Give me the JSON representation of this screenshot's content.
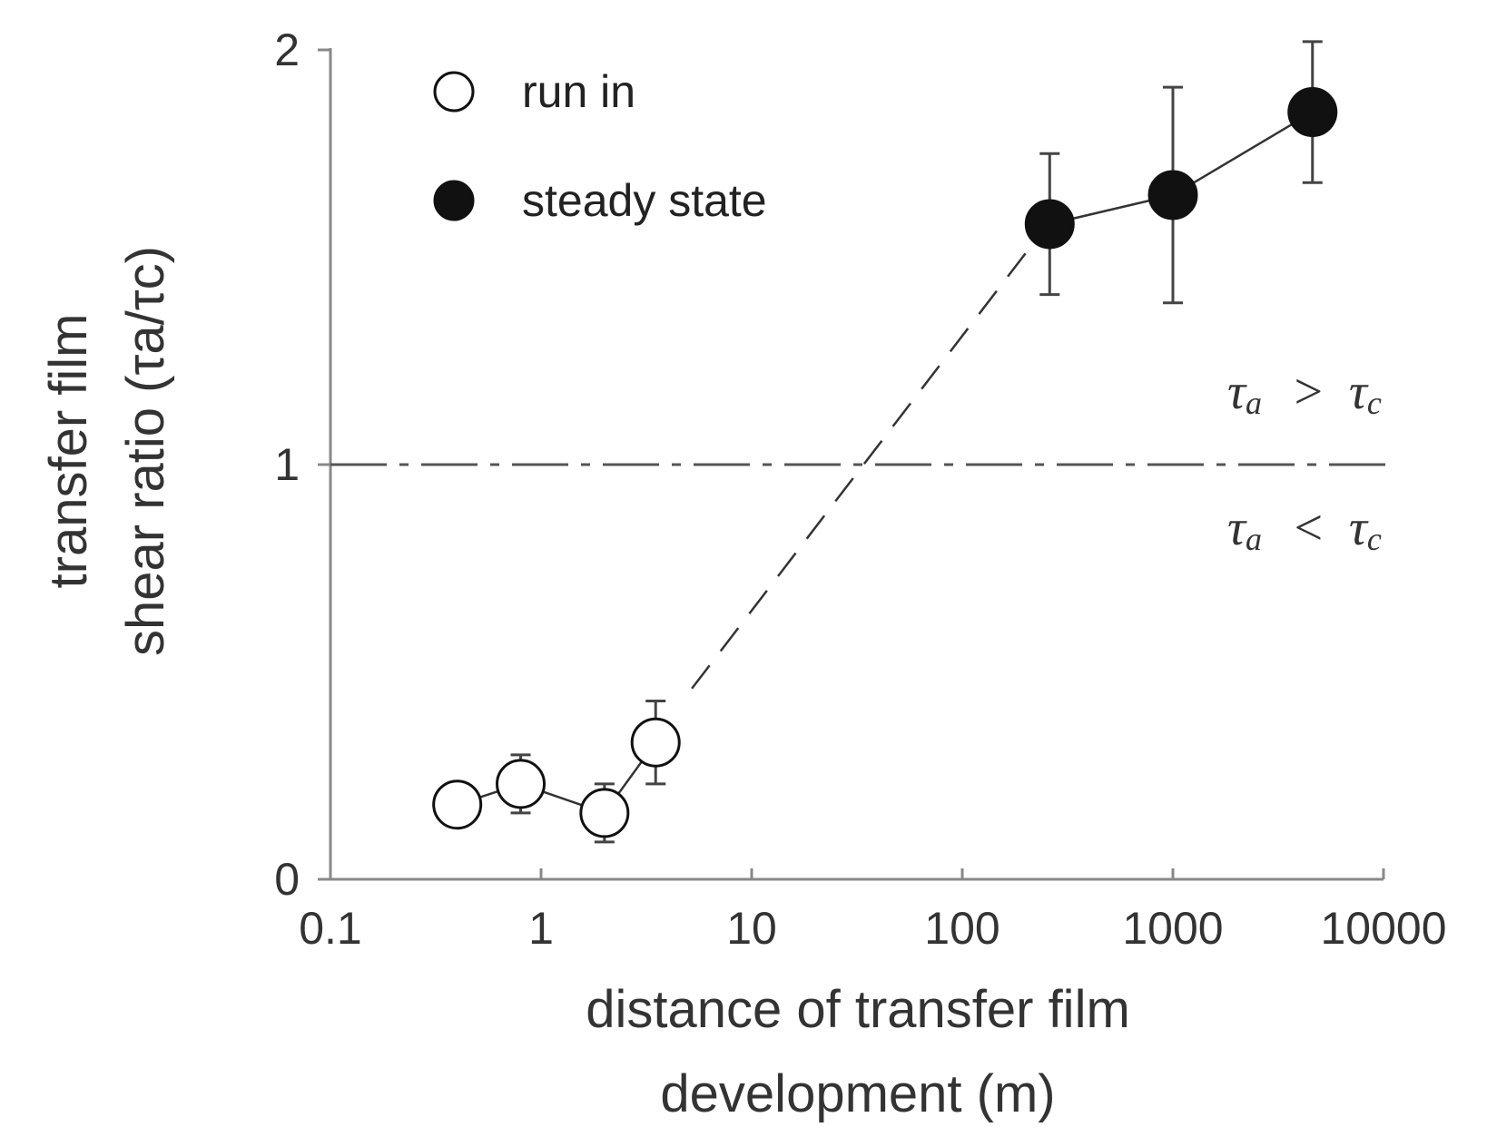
{
  "chart_data": {
    "type": "scatter",
    "title": "",
    "xlabel": "distance of transfer film development (m)",
    "xlabel_lines": [
      "distance of transfer film",
      "development (m)"
    ],
    "ylabel_lines": [
      "transfer film",
      "shear ratio (τa/τc)"
    ],
    "xscale": "log",
    "xlim": [
      0.1,
      10000
    ],
    "ylim": [
      0,
      2
    ],
    "x_ticks": [
      0.1,
      1,
      10,
      100,
      1000,
      10000
    ],
    "x_tick_labels": [
      "0.1",
      "1",
      "10",
      "100",
      "1000",
      "10000"
    ],
    "y_ticks": [
      0,
      1,
      2
    ],
    "y_tick_labels": [
      "0",
      "1",
      "2"
    ],
    "grid": false,
    "legend_position": "top-left",
    "series": [
      {
        "name": "run in",
        "marker": "open-circle",
        "points": [
          {
            "x": 0.4,
            "y": 0.18,
            "err": 0
          },
          {
            "x": 0.8,
            "y": 0.23,
            "err": 0.07
          },
          {
            "x": 2.0,
            "y": 0.16,
            "err": 0.07
          },
          {
            "x": 3.5,
            "y": 0.33,
            "err": 0.1
          }
        ]
      },
      {
        "name": "steady state",
        "marker": "filled-circle",
        "points": [
          {
            "x": 260,
            "y": 1.58,
            "err": 0.17
          },
          {
            "x": 1000,
            "y": 1.65,
            "err": 0.26
          },
          {
            "x": 4600,
            "y": 1.85,
            "err": 0.17
          }
        ]
      }
    ],
    "trend_line": {
      "style": "dashed",
      "from": {
        "x": 5.2,
        "y": 0.46
      },
      "to": {
        "x": 230,
        "y": 1.55
      }
    },
    "reference_line": {
      "y": 1,
      "style": "dash-dot"
    },
    "annotations": [
      {
        "text_main_1": "τ",
        "sub_1": "a",
        "op": ">",
        "text_main_2": "τ",
        "sub_2": "c",
        "position": "above-reference-right"
      },
      {
        "text_main_1": "τ",
        "sub_1": "a",
        "op": "<",
        "text_main_2": "τ",
        "sub_2": "c",
        "position": "below-reference-right"
      }
    ],
    "colors": {
      "axis": "#888888",
      "line": "#333333",
      "marker": "#111111"
    }
  }
}
